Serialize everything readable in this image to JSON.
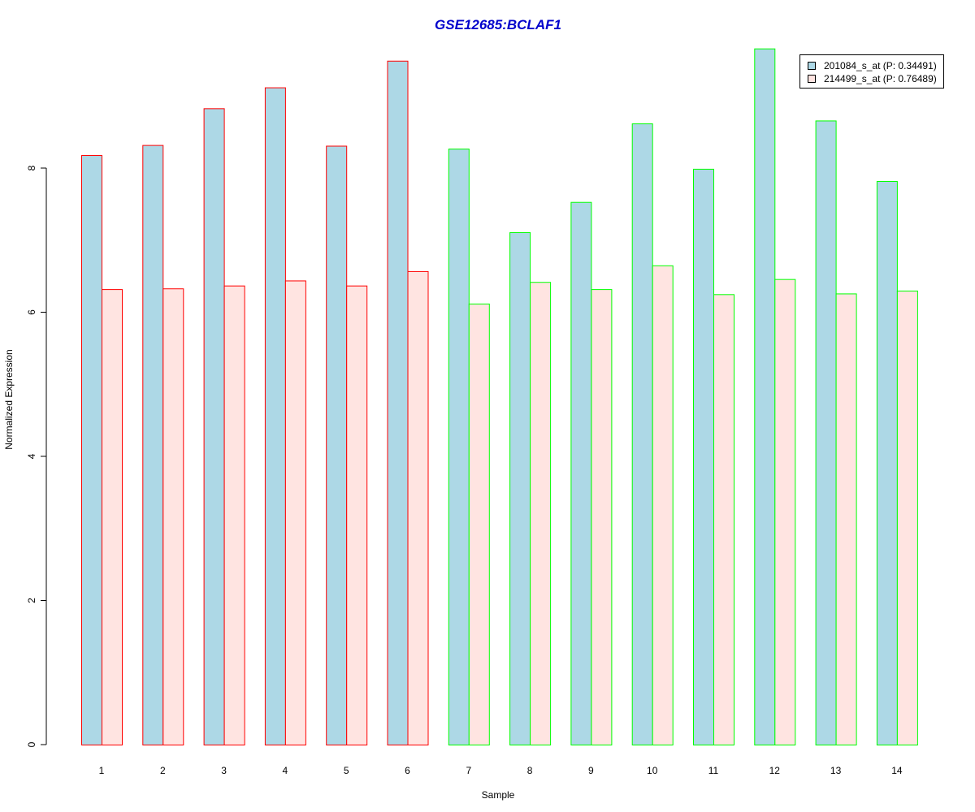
{
  "chart_data": {
    "type": "bar",
    "title": "GSE12685:BCLAF1",
    "xlabel": "Sample",
    "ylabel": "Normalized Expression",
    "ylim": [
      0,
      9.7
    ],
    "yticks": [
      0,
      2,
      4,
      6,
      8
    ],
    "categories": [
      "1",
      "2",
      "3",
      "4",
      "5",
      "6",
      "7",
      "8",
      "9",
      "10",
      "11",
      "12",
      "13",
      "14"
    ],
    "series": [
      {
        "name": "201084_s_at (P: 0.34491)",
        "fill": "#add8e6",
        "values": [
          8.18,
          8.32,
          8.83,
          9.12,
          8.31,
          9.49,
          8.27,
          7.11,
          7.53,
          8.62,
          7.99,
          9.66,
          8.66,
          7.82
        ]
      },
      {
        "name": "214499_s_at (P: 0.76489)",
        "fill": "#ffe4e1",
        "values": [
          6.32,
          6.33,
          6.37,
          6.44,
          6.37,
          6.57,
          6.12,
          6.42,
          6.32,
          6.65,
          6.25,
          6.46,
          6.26,
          6.3
        ]
      }
    ],
    "group_border_colors": [
      "#ff0000",
      "#ff0000",
      "#ff0000",
      "#ff0000",
      "#ff0000",
      "#ff0000",
      "#00ff00",
      "#00ff00",
      "#00ff00",
      "#00ff00",
      "#00ff00",
      "#00ff00",
      "#00ff00",
      "#00ff00"
    ],
    "title_color": "#0000cc",
    "legend_position": "top-right",
    "grid": false
  }
}
